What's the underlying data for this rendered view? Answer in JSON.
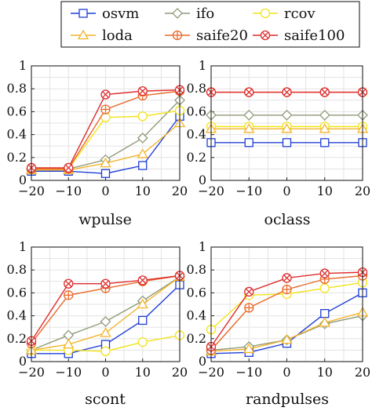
{
  "colors": {
    "osvm": "#1f3fd6",
    "ifo": "#8f9a78",
    "rcov": "#f2e31a",
    "loda": "#f4b429",
    "saife20": "#e96a2a",
    "saife100": "#de2b2b"
  },
  "chart_data": [
    {
      "type": "line",
      "xlabel": "wpulse",
      "x": [
        -20,
        -10,
        0,
        10,
        20
      ],
      "xlim": [
        -20,
        20
      ],
      "ylim": [
        0,
        1
      ],
      "x_ticks": [
        "−20",
        "−10",
        "0",
        "10",
        "20"
      ],
      "y_ticks": [
        "0",
        "0.2",
        "0.4",
        "0.6",
        "0.8",
        "1"
      ],
      "grid": true,
      "series": [
        {
          "name": "osvm",
          "values": [
            0.08,
            0.08,
            0.06,
            0.13,
            0.56
          ]
        },
        {
          "name": "ifo",
          "values": [
            0.1,
            0.1,
            0.18,
            0.37,
            0.7
          ]
        },
        {
          "name": "rcov",
          "values": [
            0.1,
            0.1,
            0.55,
            0.56,
            0.61
          ]
        },
        {
          "name": "loda",
          "values": [
            0.09,
            0.09,
            0.15,
            0.23,
            0.5
          ]
        },
        {
          "name": "saife20",
          "values": [
            0.1,
            0.1,
            0.62,
            0.74,
            0.78
          ]
        },
        {
          "name": "saife100",
          "values": [
            0.11,
            0.11,
            0.75,
            0.78,
            0.79
          ]
        }
      ]
    },
    {
      "type": "line",
      "xlabel": "oclass",
      "x": [
        -20,
        -10,
        0,
        10,
        20
      ],
      "xlim": [
        -20,
        20
      ],
      "ylim": [
        0,
        1
      ],
      "x_ticks": [
        "−20",
        "−10",
        "0",
        "10",
        "20"
      ],
      "y_ticks": [
        "0",
        "0.2",
        "0.4",
        "0.6",
        "0.8",
        "1"
      ],
      "grid": true,
      "series": [
        {
          "name": "osvm",
          "values": [
            0.33,
            0.33,
            0.33,
            0.33,
            0.33
          ]
        },
        {
          "name": "ifo",
          "values": [
            0.57,
            0.57,
            0.57,
            0.57,
            0.57
          ]
        },
        {
          "name": "rcov",
          "values": [
            0.47,
            0.47,
            0.47,
            0.47,
            0.47
          ]
        },
        {
          "name": "loda",
          "values": [
            0.45,
            0.45,
            0.45,
            0.45,
            0.45
          ]
        },
        {
          "name": "saife20",
          "values": [
            0.77,
            0.77,
            0.77,
            0.77,
            0.77
          ]
        },
        {
          "name": "saife100",
          "values": [
            0.77,
            0.77,
            0.77,
            0.77,
            0.77
          ]
        }
      ]
    },
    {
      "type": "line",
      "xlabel": "scont",
      "x": [
        -20,
        -10,
        0,
        10,
        20
      ],
      "xlim": [
        -20,
        20
      ],
      "ylim": [
        0,
        1
      ],
      "x_ticks": [
        "−20",
        "−10",
        "0",
        "10",
        "20"
      ],
      "y_ticks": [
        "0",
        "0.2",
        "0.4",
        "0.6",
        "0.8",
        "1"
      ],
      "grid": true,
      "series": [
        {
          "name": "osvm",
          "values": [
            0.07,
            0.07,
            0.15,
            0.36,
            0.67
          ]
        },
        {
          "name": "ifo",
          "values": [
            0.1,
            0.23,
            0.35,
            0.53,
            0.74
          ]
        },
        {
          "name": "rcov",
          "values": [
            0.1,
            0.1,
            0.09,
            0.17,
            0.23
          ]
        },
        {
          "name": "loda",
          "values": [
            0.1,
            0.15,
            0.25,
            0.5,
            0.74
          ]
        },
        {
          "name": "saife20",
          "values": [
            0.16,
            0.58,
            0.64,
            0.7,
            0.75
          ]
        },
        {
          "name": "saife100",
          "values": [
            0.18,
            0.68,
            0.68,
            0.71,
            0.75
          ]
        }
      ]
    },
    {
      "type": "line",
      "xlabel": "randpulses",
      "x": [
        -20,
        -10,
        0,
        10,
        20
      ],
      "xlim": [
        -20,
        20
      ],
      "ylim": [
        0,
        1
      ],
      "x_ticks": [
        "−20",
        "−10",
        "0",
        "10",
        "20"
      ],
      "y_ticks": [
        "0",
        "0.2",
        "0.4",
        "0.6",
        "0.8",
        "1"
      ],
      "grid": true,
      "series": [
        {
          "name": "osvm",
          "values": [
            0.07,
            0.08,
            0.16,
            0.42,
            0.6
          ]
        },
        {
          "name": "ifo",
          "values": [
            0.1,
            0.13,
            0.19,
            0.33,
            0.4
          ]
        },
        {
          "name": "rcov",
          "values": [
            0.28,
            0.58,
            0.59,
            0.64,
            0.69
          ]
        },
        {
          "name": "loda",
          "values": [
            0.09,
            0.11,
            0.19,
            0.34,
            0.43
          ]
        },
        {
          "name": "saife20",
          "values": [
            0.1,
            0.47,
            0.63,
            0.72,
            0.75
          ]
        },
        {
          "name": "saife100",
          "values": [
            0.13,
            0.61,
            0.73,
            0.77,
            0.78
          ]
        }
      ]
    }
  ],
  "legend": {
    "placement": "top",
    "entries": [
      {
        "label": "osvm",
        "color_key": "osvm",
        "marker": "square-open"
      },
      {
        "label": "ifo",
        "color_key": "ifo",
        "marker": "diamond-open"
      },
      {
        "label": "rcov",
        "color_key": "rcov",
        "marker": "circle-open"
      },
      {
        "label": "loda",
        "color_key": "loda",
        "marker": "triangle-open"
      },
      {
        "label": "saife20",
        "color_key": "saife20",
        "marker": "circle-plus"
      },
      {
        "label": "saife100",
        "color_key": "saife100",
        "marker": "circle-cross"
      }
    ]
  }
}
